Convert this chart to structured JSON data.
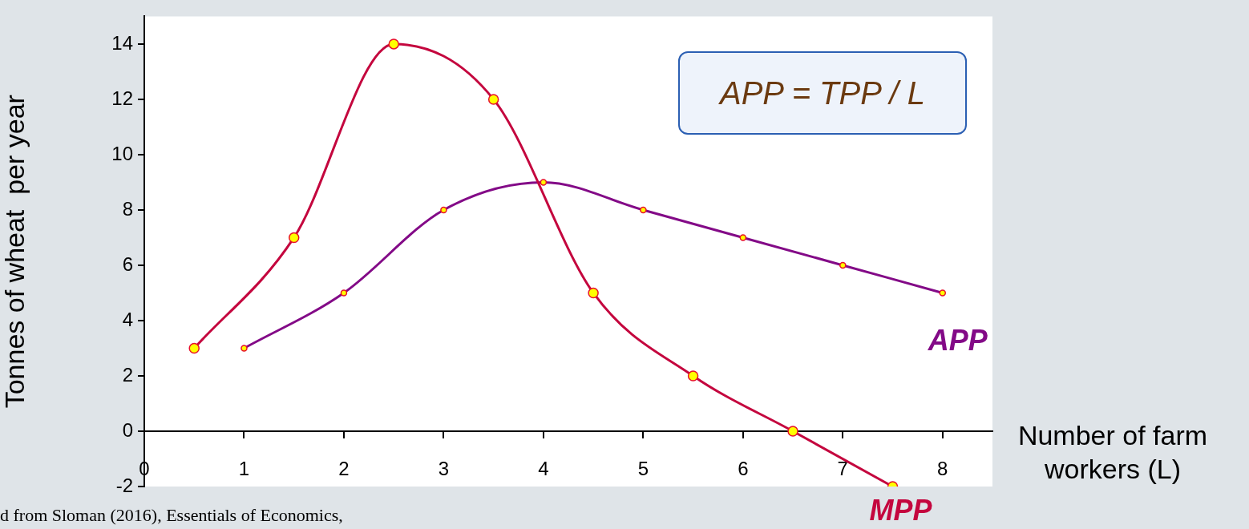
{
  "chart_data": {
    "type": "line",
    "xlabel": "Number of farm workers (L)",
    "ylabel": "Tonnes of wheat  per year",
    "xlim": [
      0,
      8.5
    ],
    "xticks": [
      0,
      1,
      2,
      3,
      4,
      5,
      6,
      7,
      8
    ],
    "ylim": [
      -2,
      15
    ],
    "yticks": [
      -2,
      0,
      2,
      4,
      6,
      8,
      10,
      12,
      14
    ],
    "series": [
      {
        "name": "MPP",
        "color": "#c4063e",
        "x": [
          0.5,
          1.5,
          2.5,
          3.5,
          4.5,
          5.5,
          6.5,
          7.5
        ],
        "values": [
          3,
          7,
          14,
          12,
          5,
          2,
          0,
          -2
        ]
      },
      {
        "name": "APP",
        "color": "#830a87",
        "x": [
          1,
          2,
          3,
          4,
          5,
          6,
          7,
          8
        ],
        "values": [
          3,
          5,
          8,
          9,
          8,
          7,
          6,
          5
        ]
      }
    ],
    "marker": "circle",
    "line_style": "solid",
    "legend": false,
    "annotations": [
      "APP = TPP / L",
      "d from Sloman (2016), Essentials of Economics,"
    ]
  }
}
